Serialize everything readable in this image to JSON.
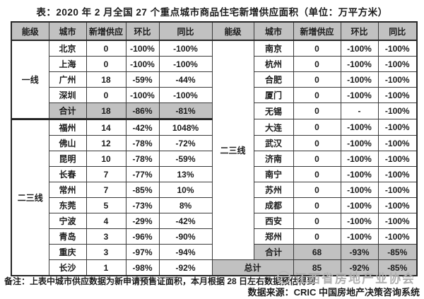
{
  "title": "表：2020 年 2 月全国 27 个重点城市商品住宅新增供应面积（单位：万平方米）",
  "table": {
    "headers": [
      "能级",
      "城市",
      "新增供应",
      "环比",
      "同比",
      "能级",
      "城市",
      "新增供应",
      "环比",
      "同比"
    ],
    "left_groups": [
      {
        "label": "一线",
        "start": 0,
        "span": 5,
        "thickBottom": true
      },
      {
        "label": "二三线",
        "start": 5,
        "span": 10
      }
    ],
    "right_groups": [
      {
        "label": "二三线",
        "start": 0,
        "span": 14
      }
    ],
    "left_rows": [
      {
        "cells": [
          "北京",
          "0",
          "-100%",
          "-100%"
        ]
      },
      {
        "cells": [
          "上海",
          "0",
          "-100%",
          "-100%"
        ]
      },
      {
        "cells": [
          "广州",
          "18",
          "-59%",
          "-44%"
        ]
      },
      {
        "cells": [
          "深圳",
          "0",
          "-100%",
          "-100%"
        ]
      },
      {
        "cells": [
          "合计",
          "18",
          "-86%",
          "-81%"
        ],
        "highlight": true,
        "groupEnd": true
      },
      {
        "cells": [
          "福州",
          "14",
          "-42%",
          "1048%"
        ]
      },
      {
        "cells": [
          "佛山",
          "12",
          "-78%",
          "-72%"
        ]
      },
      {
        "cells": [
          "昆明",
          "10",
          "-78%",
          "-59%"
        ]
      },
      {
        "cells": [
          "长春",
          "7",
          "-77%",
          "13%"
        ]
      },
      {
        "cells": [
          "常州",
          "7",
          "-85%",
          "10%"
        ]
      },
      {
        "cells": [
          "东莞",
          "5",
          "-73%",
          "8%"
        ]
      },
      {
        "cells": [
          "宁波",
          "4",
          "-29%",
          "-42%"
        ]
      },
      {
        "cells": [
          "青岛",
          "3",
          "-96%",
          "-90%"
        ]
      },
      {
        "cells": [
          "重庆",
          "3",
          "-97%",
          "-94%"
        ]
      },
      {
        "cells": [
          "长沙",
          "1",
          "-98%",
          "-92%"
        ]
      }
    ],
    "right_rows": [
      {
        "cells": [
          "南京",
          "0",
          "-100%",
          "-100%"
        ]
      },
      {
        "cells": [
          "杭州",
          "0",
          "-100%",
          "-100%"
        ]
      },
      {
        "cells": [
          "合肥",
          "0",
          "-100%",
          "-100%"
        ]
      },
      {
        "cells": [
          "厦门",
          "0",
          "-100%",
          "-100%"
        ]
      },
      {
        "cells": [
          "无锡",
          "0",
          "-",
          "-100%"
        ]
      },
      {
        "cells": [
          "大连",
          "0",
          "-100%",
          "-100%"
        ]
      },
      {
        "cells": [
          "武汉",
          "0",
          "-100%",
          "-100%"
        ]
      },
      {
        "cells": [
          "济南",
          "0",
          "-100%",
          "-100%"
        ]
      },
      {
        "cells": [
          "南宁",
          "0",
          "-100%",
          "-100%"
        ]
      },
      {
        "cells": [
          "苏州",
          "0",
          "-100%",
          "-100%"
        ]
      },
      {
        "cells": [
          "成都",
          "0",
          "-100%",
          "-100%"
        ]
      },
      {
        "cells": [
          "西安",
          "0",
          "-100%",
          "-100%"
        ]
      },
      {
        "cells": [
          "郑州",
          "0",
          "-100%",
          "-100%"
        ]
      },
      {
        "cells": [
          "合计",
          "68",
          "-93%",
          "-85%"
        ],
        "highlight": true
      },
      {
        "cells": [
          "总计",
          "85",
          "-92%",
          "-85%"
        ],
        "highlight": true,
        "mergeTier": true
      }
    ]
  },
  "footer": {
    "note": "备注：上表中城市供应数据为新申请预售证面积，本月根据 28 日左右数据预估得到",
    "watermark": "江西省房地产业协会",
    "source": "数据来源：CRIC 中国房地产决策咨询系统"
  },
  "colors": {
    "header_bg": "#c1c1c1",
    "highlight_bg": "#c1c1c1",
    "border": "#3a3a3a",
    "outer_border": "#262626",
    "watermark": "#b0b0b0"
  }
}
